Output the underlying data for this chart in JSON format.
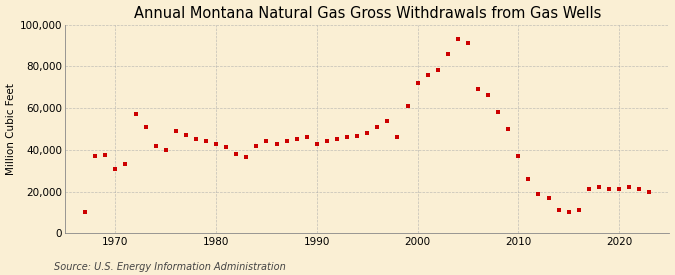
{
  "title": "Annual Montana Natural Gas Gross Withdrawals from Gas Wells",
  "ylabel": "Million Cubic Feet",
  "source": "Source: U.S. Energy Information Administration",
  "background_color": "#faefd4",
  "marker_color": "#cc0000",
  "years": [
    1967,
    1968,
    1969,
    1970,
    1971,
    1972,
    1973,
    1974,
    1975,
    1976,
    1977,
    1978,
    1979,
    1980,
    1981,
    1982,
    1983,
    1984,
    1985,
    1986,
    1987,
    1988,
    1989,
    1990,
    1991,
    1992,
    1993,
    1994,
    1995,
    1996,
    1997,
    1998,
    1999,
    2000,
    2001,
    2002,
    2003,
    2004,
    2005,
    2006,
    2007,
    2008,
    2009,
    2010,
    2011,
    2012,
    2013,
    2014,
    2015,
    2016,
    2017,
    2018,
    2019,
    2020,
    2021,
    2022,
    2023
  ],
  "values": [
    10000,
    37000,
    37500,
    31000,
    33000,
    57000,
    51000,
    42000,
    40000,
    49000,
    47000,
    45000,
    44000,
    43000,
    41500,
    38000,
    36500,
    42000,
    44000,
    43000,
    44000,
    45000,
    46000,
    43000,
    44000,
    45000,
    46000,
    46500,
    48000,
    51000,
    54000,
    46000,
    61000,
    72000,
    76000,
    78000,
    86000,
    93000,
    91000,
    69000,
    66000,
    58000,
    50000,
    37000,
    26000,
    19000,
    17000,
    11000,
    10000,
    11000,
    21000,
    22000,
    21000,
    21000,
    22000,
    21000,
    20000
  ],
  "xlim": [
    1965,
    2025
  ],
  "ylim": [
    0,
    100000
  ],
  "yticks": [
    0,
    20000,
    40000,
    60000,
    80000,
    100000
  ],
  "xticks": [
    1970,
    1980,
    1990,
    2000,
    2010,
    2020
  ],
  "grid_color": "#aaaaaa",
  "title_fontsize": 10.5,
  "label_fontsize": 7.5,
  "tick_fontsize": 7.5,
  "source_fontsize": 7
}
